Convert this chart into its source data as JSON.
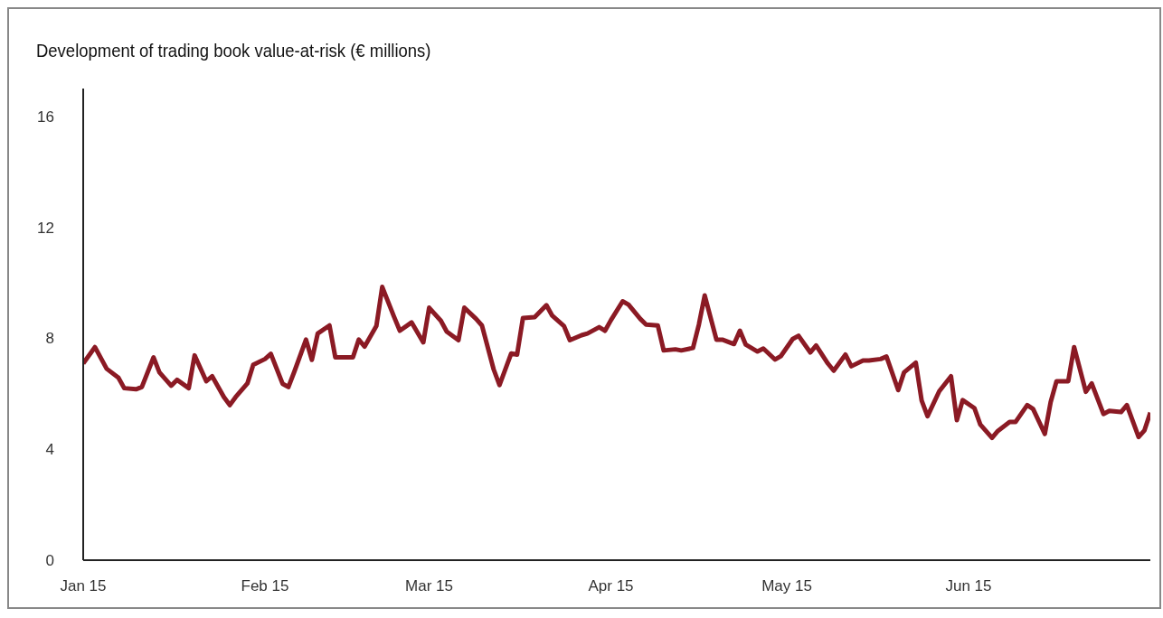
{
  "chart_data": {
    "type": "line",
    "title": "Development of trading book value-at-risk (€ millions)",
    "x": [
      "2015-01-01",
      "2015-01-03",
      "2015-01-05",
      "2015-01-07",
      "2015-01-08",
      "2015-01-10",
      "2015-01-11",
      "2015-01-13",
      "2015-01-14",
      "2015-01-16",
      "2015-01-17",
      "2015-01-19",
      "2015-01-20",
      "2015-01-22",
      "2015-01-23",
      "2015-01-25",
      "2015-01-26",
      "2015-01-27",
      "2015-01-29",
      "2015-01-30",
      "2015-02-01",
      "2015-02-02",
      "2015-02-04",
      "2015-02-05",
      "2015-02-06",
      "2015-02-08",
      "2015-02-09",
      "2015-02-10",
      "2015-02-12",
      "2015-02-13",
      "2015-02-14",
      "2015-02-16",
      "2015-02-17",
      "2015-02-18",
      "2015-02-20",
      "2015-02-21",
      "2015-02-23",
      "2015-02-24",
      "2015-02-26",
      "2015-02-28",
      "2015-03-01",
      "2015-03-03",
      "2015-03-04",
      "2015-03-06",
      "2015-03-07",
      "2015-03-09",
      "2015-03-10",
      "2015-03-12",
      "2015-03-13",
      "2015-03-15",
      "2015-03-16",
      "2015-03-17",
      "2015-03-19",
      "2015-03-21",
      "2015-03-22",
      "2015-03-24",
      "2015-03-25",
      "2015-03-27",
      "2015-03-28",
      "2015-03-30",
      "2015-03-31",
      "2015-04-01",
      "2015-04-03",
      "2015-04-04",
      "2015-04-06",
      "2015-04-07",
      "2015-04-09",
      "2015-04-10",
      "2015-04-12",
      "2015-04-13",
      "2015-04-15",
      "2015-04-16",
      "2015-04-17",
      "2015-04-19",
      "2015-04-20",
      "2015-04-22",
      "2015-04-23",
      "2015-04-24",
      "2015-04-26",
      "2015-04-27",
      "2015-04-29",
      "2015-04-30",
      "2015-05-02",
      "2015-05-03",
      "2015-05-05",
      "2015-05-06",
      "2015-05-08",
      "2015-05-09",
      "2015-05-11",
      "2015-05-12",
      "2015-05-14",
      "2015-05-15",
      "2015-05-17",
      "2015-05-18",
      "2015-05-20",
      "2015-05-21",
      "2015-05-23",
      "2015-05-24",
      "2015-05-25",
      "2015-05-27",
      "2015-05-29",
      "2015-05-30",
      "2015-05-31",
      "2015-06-02",
      "2015-06-03",
      "2015-06-05",
      "2015-06-06",
      "2015-06-08",
      "2015-06-09",
      "2015-06-11",
      "2015-06-12",
      "2015-06-14",
      "2015-06-15",
      "2015-06-16",
      "2015-06-18",
      "2015-06-19",
      "2015-06-21",
      "2015-06-22",
      "2015-06-24",
      "2015-06-25",
      "2015-06-27",
      "2015-06-28",
      "2015-06-30",
      "2015-07-01",
      "2015-07-02"
    ],
    "series": [
      {
        "color": "#8b1a24",
        "values": [
          7.09,
          7.68,
          6.9,
          6.58,
          6.2,
          6.16,
          6.24,
          7.31,
          6.77,
          6.29,
          6.5,
          6.2,
          7.38,
          6.45,
          6.63,
          5.88,
          5.59,
          5.88,
          6.37,
          7.04,
          7.25,
          7.44,
          6.36,
          6.24,
          6.79,
          7.95,
          7.22,
          8.17,
          8.46,
          7.31,
          7.31,
          7.31,
          7.95,
          7.7,
          8.44,
          9.85,
          8.78,
          8.27,
          8.57,
          7.85,
          9.1,
          8.63,
          8.24,
          7.93,
          9.1,
          8.7,
          8.46,
          6.88,
          6.31,
          7.45,
          7.41,
          8.73,
          8.76,
          9.19,
          8.81,
          8.44,
          7.93,
          8.11,
          8.17,
          8.4,
          8.27,
          8.65,
          9.33,
          9.21,
          8.7,
          8.49,
          8.46,
          7.56,
          7.6,
          7.56,
          7.65,
          8.49,
          9.54,
          7.95,
          7.95,
          7.79,
          8.27,
          7.77,
          7.52,
          7.63,
          7.23,
          7.36,
          7.97,
          8.09,
          7.49,
          7.74,
          7.09,
          6.83,
          7.41,
          6.99,
          7.2,
          7.2,
          7.25,
          7.34,
          6.13,
          6.77,
          7.12,
          5.75,
          5.19,
          6.09,
          6.63,
          5.05,
          5.77,
          5.48,
          4.89,
          4.41,
          4.66,
          4.98,
          4.98,
          5.59,
          5.45,
          4.55,
          5.7,
          6.45,
          6.45,
          7.68,
          6.07,
          6.37,
          5.27,
          5.38,
          5.34,
          5.59,
          4.44,
          4.68,
          5.32
        ]
      }
    ],
    "xlim": [
      "2015-01-01",
      "2015-07-02"
    ],
    "xticks": [
      {
        "value": "2015-01-01",
        "label": "Jan 15"
      },
      {
        "value": "2015-02-01",
        "label": "Feb 15"
      },
      {
        "value": "2015-03-01",
        "label": "Mar 15"
      },
      {
        "value": "2015-04-01",
        "label": "Apr 15"
      },
      {
        "value": "2015-05-01",
        "label": "May 15"
      },
      {
        "value": "2015-06-01",
        "label": "Jun 15"
      }
    ],
    "ylim": [
      0,
      17
    ],
    "yticks": [
      0,
      4,
      8,
      12,
      16
    ],
    "grid": false,
    "marker": "none",
    "line_style": "solid"
  }
}
